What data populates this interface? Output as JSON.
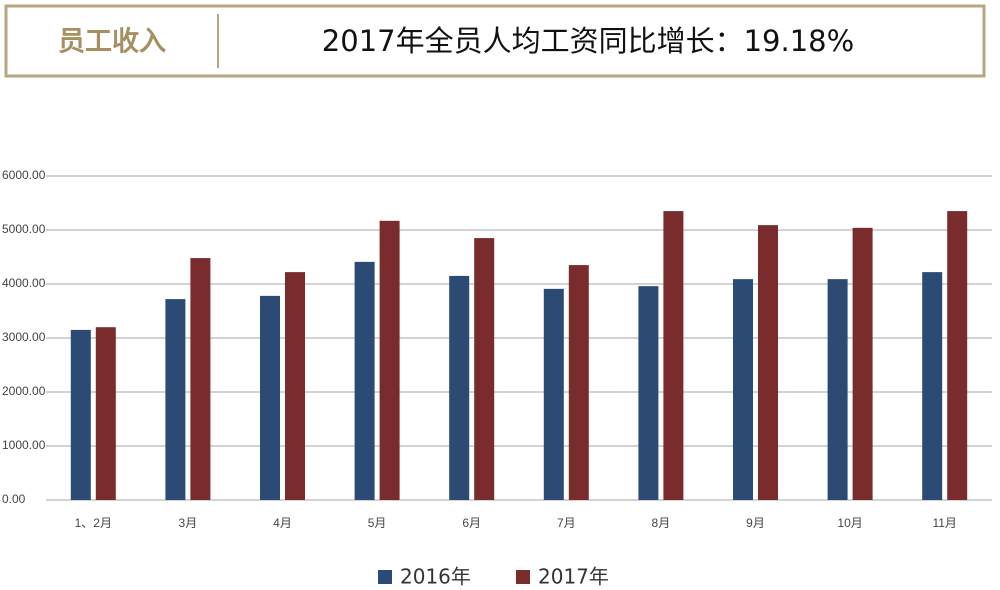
{
  "header": {
    "label": "员工收入"
  },
  "chart_data": {
    "type": "bar",
    "title": "2017年全员人均工资同比增长：19.18%",
    "categories": [
      "1、2月",
      "3月",
      "4月",
      "5月",
      "6月",
      "7月",
      "8月",
      "9月",
      "10月",
      "11月"
    ],
    "series": [
      {
        "name": "2016年",
        "color": "#2b4a74",
        "values": [
          3150,
          3720,
          3780,
          4410,
          4150,
          3910,
          3960,
          4090,
          4090,
          4220
        ]
      },
      {
        "name": "2017年",
        "color": "#7a2b2b",
        "values": [
          3200,
          4480,
          4220,
          5170,
          4850,
          4350,
          5350,
          5090,
          5040,
          5350
        ]
      }
    ],
    "ylim": [
      0,
      6000
    ],
    "yticks": [
      {
        "value": 0,
        "label": "0.00"
      },
      {
        "value": 1000,
        "label": "1000.00"
      },
      {
        "value": 2000,
        "label": "2000.00"
      },
      {
        "value": 3000,
        "label": "3000.00"
      },
      {
        "value": 4000,
        "label": "4000.00"
      },
      {
        "value": 5000,
        "label": "5000.00"
      },
      {
        "value": 6000,
        "label": "6000.00"
      }
    ],
    "grid": true,
    "legend": "bottom"
  }
}
